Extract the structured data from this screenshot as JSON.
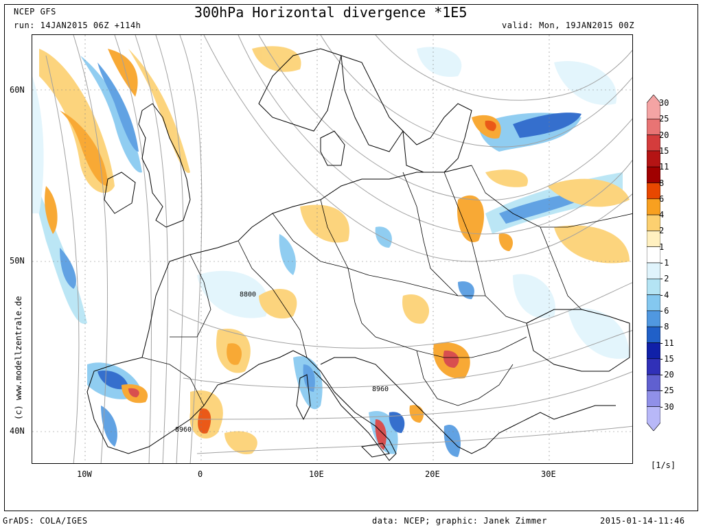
{
  "header": {
    "model": "NCEP GFS",
    "title": "300hPa Horizontal divergence *1E5",
    "run": "run: 14JAN2015 06Z +114h",
    "valid": "valid: Mon, 19JAN2015 00Z"
  },
  "axes": {
    "lat_labels": [
      "60N",
      "50N",
      "40N"
    ],
    "lon_labels": [
      "10W",
      "0",
      "10E",
      "20E",
      "30E"
    ]
  },
  "map": {
    "contour_labels": [
      "8800",
      "8960",
      "8960"
    ],
    "watermark": "(c) www.modellzentrale.de"
  },
  "colorbar": {
    "unit": "[1/s]",
    "levels": [
      "30",
      "25",
      "20",
      "15",
      "11",
      "8",
      "6",
      "4",
      "2",
      "1",
      "-1",
      "-2",
      "-4",
      "-6",
      "-8",
      "-11",
      "-15",
      "-20",
      "-25",
      "-30"
    ],
    "colors": [
      "#f4a4a4",
      "#e87474",
      "#d43c3c",
      "#b41414",
      "#a00000",
      "#e84800",
      "#f8a020",
      "#fcd070",
      "#fff0c0",
      "#ffffff",
      "#e0f4fc",
      "#b4e4f4",
      "#84c8f0",
      "#5098e0",
      "#2060c8",
      "#1020a8",
      "#3030b8",
      "#6060d0",
      "#9090e8",
      "#b8b8f8"
    ]
  },
  "footer": {
    "left": "GrADS: COLA/IGES",
    "center": "data: NCEP; graphic: Janek Zimmer",
    "right": "2015-01-14-11:46"
  }
}
